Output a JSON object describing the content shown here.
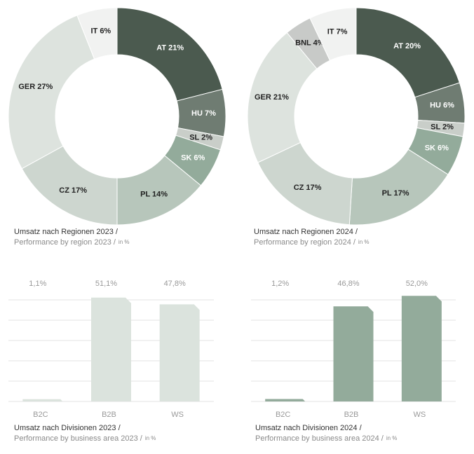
{
  "chart_data": [
    {
      "type": "donut",
      "title": "Umsatz nach Regionen 2023 /",
      "subtitle": "Performance by region 2023 /",
      "unit": "in %",
      "values": [
        21,
        7,
        2,
        6,
        14,
        17,
        27,
        6
      ],
      "value_labels": [
        "AT 21%",
        "HU 7%",
        "SL 2%",
        "SK 6%",
        "PL 14%",
        "CZ 17%",
        "GER 27%",
        "IT 6%"
      ],
      "colors": [
        "#4b5a4f",
        "#6f7c72",
        "#c9cec9",
        "#93ab9b",
        "#b7c6bb",
        "#cdd6cf",
        "#dde3de",
        "#f1f2f1"
      ]
    },
    {
      "type": "donut",
      "title": "Umsatz nach Regionen 2024 /",
      "subtitle": "Performance by region 2024 /",
      "unit": "in %",
      "values": [
        20,
        6,
        2,
        6,
        17,
        17,
        21,
        4,
        7
      ],
      "value_labels": [
        "AT 20%",
        "HU 6%",
        "SL 2%",
        "SK 6%",
        "PL 17%",
        "CZ 17%",
        "GER 21%",
        "BNL 4%",
        "IT 7%"
      ],
      "colors": [
        "#4b5a4f",
        "#6f7c72",
        "#c9cec9",
        "#93ab9b",
        "#b7c6bb",
        "#cdd6cf",
        "#dde3de",
        "#c8cac8",
        "#f1f2f1"
      ]
    },
    {
      "type": "bar",
      "title": "Umsatz nach Divisionen 2023 /",
      "subtitle": "Performance by business area 2023 /",
      "unit": "in %",
      "categories": [
        "B2C",
        "B2B",
        "WS"
      ],
      "values": [
        1.1,
        51.1,
        47.8
      ],
      "value_labels": [
        "1,1%",
        "51,1%",
        "47,8%"
      ],
      "color": "#dbe3dd",
      "ylim": [
        0,
        50
      ],
      "grid": true
    },
    {
      "type": "bar",
      "title": "Umsatz nach Divisionen 2024 /",
      "subtitle": "Performance by business area 2024 /",
      "unit": "in %",
      "categories": [
        "B2C",
        "B2B",
        "WS"
      ],
      "values": [
        1.2,
        46.8,
        52.0
      ],
      "value_labels": [
        "1,2%",
        "46,8%",
        "52,0%"
      ],
      "color": "#93ab9b",
      "ylim": [
        0,
        50
      ],
      "grid": true
    }
  ]
}
